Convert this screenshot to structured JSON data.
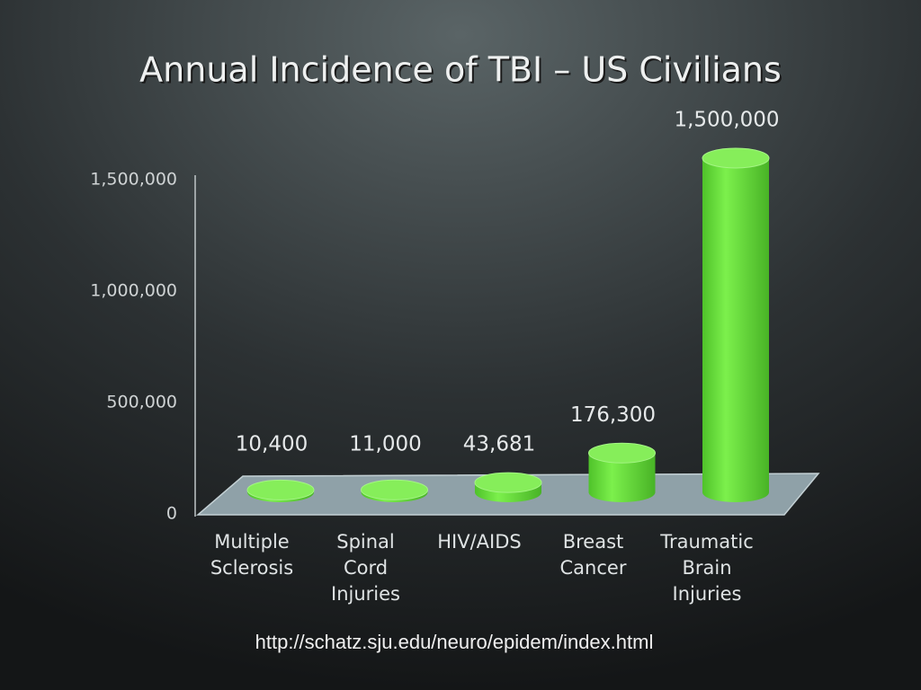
{
  "chart_data": {
    "type": "cylinder-bar",
    "title": "Annual Incidence of TBI – US Civilians",
    "categories": [
      [
        "Multiple",
        "Sclerosis"
      ],
      [
        "Spinal",
        "Cord",
        "Injuries"
      ],
      [
        "HIV/AIDS"
      ],
      [
        "Breast",
        "Cancer"
      ],
      [
        "Traumatic",
        "Brain",
        "Injuries"
      ]
    ],
    "values": [
      10400,
      11000,
      43681,
      176300,
      1500000
    ],
    "value_labels": [
      "10,400",
      "11,000",
      "43,681",
      "176,300",
      "1,500,000"
    ],
    "color": "#66e23a",
    "ylim": [
      0,
      1500000
    ],
    "yticks": [
      0,
      {
        "value": 500000,
        "label": "500,000"
      },
      {
        "value": 1000000,
        "label": "1,000,000"
      },
      {
        "value": 1500000,
        "label": "1,500,000"
      }
    ],
    "source": "http://schatz.sju.edu/neuro/epidem/index.html"
  }
}
